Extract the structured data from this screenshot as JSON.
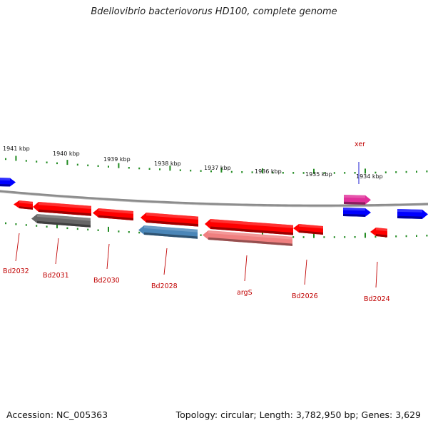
{
  "title": "Bdellovibrio bacteriovorus HD100, complete genome",
  "footer": {
    "accession": "Accession: NC_005363",
    "summary": "Topology: circular; Length: 3,782,950 bp; Genes: 3,629"
  },
  "colors": {
    "red": "#ff0000",
    "blue": "#0000ff",
    "gray": "#666666",
    "steel": "#4a86b8",
    "salmon": "#f08080",
    "pink": "#e0309a",
    "ticks": "#228b22",
    "label": "#c00000",
    "label_blue": "#0000cc",
    "backbone": "#8c8c8c"
  },
  "kbp_labels": [
    "1941 kbp",
    "1940 kbp",
    "1939 kbp",
    "1938 kbp",
    "1937 kbp",
    "1936 kbp",
    "1935 kbp",
    "1934 kbp"
  ],
  "genes": [
    {
      "id": "g01",
      "strand": "+",
      "color": "blue",
      "label": ""
    },
    {
      "id": "g02",
      "strand": "-",
      "color": "red",
      "label": "Bd2032"
    },
    {
      "id": "g03",
      "strand": "-",
      "color": "red",
      "label": "Bd2031"
    },
    {
      "id": "g04",
      "strand": "-",
      "color": "gray",
      "label": ""
    },
    {
      "id": "g05",
      "strand": "-",
      "color": "red",
      "label": "Bd2030"
    },
    {
      "id": "g06",
      "strand": "-",
      "color": "red",
      "label": "Bd2028"
    },
    {
      "id": "g07",
      "strand": "-",
      "color": "steel",
      "label": ""
    },
    {
      "id": "g08",
      "strand": "-",
      "color": "red",
      "label": "argS"
    },
    {
      "id": "g09",
      "strand": "-",
      "color": "salmon",
      "label": ""
    },
    {
      "id": "g10",
      "strand": "-",
      "color": "red",
      "label": "Bd2026"
    },
    {
      "id": "g11",
      "strand": "+",
      "color": "pink",
      "label": "xer"
    },
    {
      "id": "g12",
      "strand": "+",
      "color": "blue",
      "label": ""
    },
    {
      "id": "g13",
      "strand": "-",
      "color": "red",
      "label": "Bd2024"
    },
    {
      "id": "g14",
      "strand": "+",
      "color": "blue",
      "label": ""
    }
  ]
}
